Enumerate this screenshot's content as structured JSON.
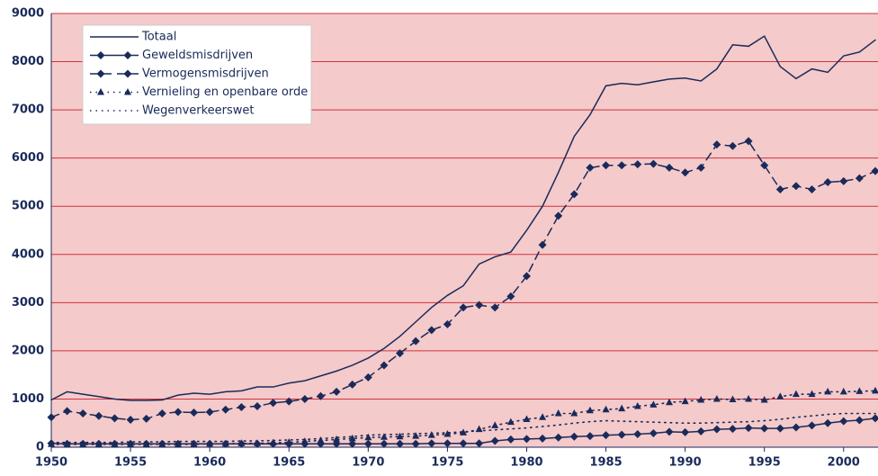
{
  "chart_data": {
    "type": "line",
    "x": [
      1950,
      1951,
      1952,
      1953,
      1954,
      1955,
      1956,
      1957,
      1958,
      1959,
      1960,
      1961,
      1962,
      1963,
      1964,
      1965,
      1966,
      1967,
      1968,
      1969,
      1970,
      1971,
      1972,
      1973,
      1974,
      1975,
      1976,
      1977,
      1978,
      1979,
      1980,
      1981,
      1982,
      1983,
      1984,
      1985,
      1986,
      1987,
      1988,
      1989,
      1990,
      1991,
      1992,
      1993,
      1994,
      1995,
      1996,
      1997,
      1998,
      1999,
      2000,
      2001,
      2002
    ],
    "xlim": [
      1950,
      2002
    ],
    "xticks": [
      1950,
      1955,
      1960,
      1965,
      1970,
      1975,
      1980,
      1985,
      1990,
      1995,
      2000
    ],
    "ylim": [
      0,
      9000
    ],
    "yticks": [
      0,
      1000,
      2000,
      3000,
      4000,
      5000,
      6000,
      7000,
      8000,
      9000
    ],
    "grid": true,
    "legend": "top-left",
    "series": [
      {
        "name": "Totaal",
        "color": "#1a2a5a",
        "dash": "solid",
        "marker": "none",
        "values": [
          980,
          1150,
          1100,
          1050,
          1000,
          970,
          970,
          980,
          1080,
          1120,
          1100,
          1150,
          1170,
          1250,
          1250,
          1330,
          1380,
          1480,
          1580,
          1700,
          1850,
          2050,
          2300,
          2600,
          2900,
          3150,
          3350,
          3800,
          3950,
          4050,
          4500,
          5000,
          5700,
          6450,
          6900,
          7500,
          7550,
          7520,
          7580,
          7640,
          7660,
          7600,
          7850,
          8350,
          8320,
          8530,
          7900,
          7650,
          7850,
          7780,
          8120,
          8200,
          8450
        ]
      },
      {
        "name": "Geweldsmisdrijven",
        "color": "#1a2a5a",
        "dash": "solid",
        "marker": "diamond",
        "values": [
          80,
          70,
          70,
          70,
          70,
          70,
          70,
          70,
          70,
          70,
          70,
          70,
          70,
          70,
          70,
          70,
          70,
          70,
          70,
          70,
          70,
          70,
          70,
          70,
          80,
          80,
          80,
          80,
          130,
          160,
          170,
          180,
          200,
          220,
          230,
          250,
          260,
          270,
          290,
          320,
          310,
          330,
          370,
          380,
          400,
          390,
          390,
          410,
          450,
          500,
          540,
          560,
          600
        ]
      },
      {
        "name": "Vermogensmisdrijven",
        "color": "#1a2a5a",
        "dash": "dashed",
        "marker": "diamond",
        "values": [
          620,
          750,
          700,
          650,
          600,
          570,
          590,
          700,
          730,
          720,
          730,
          780,
          830,
          850,
          920,
          950,
          1000,
          1060,
          1150,
          1300,
          1450,
          1700,
          1950,
          2200,
          2430,
          2550,
          2900,
          2950,
          2900,
          3130,
          3550,
          4200,
          4800,
          5250,
          5800,
          5850,
          5850,
          5870,
          5880,
          5800,
          5700,
          5800,
          6280,
          6250,
          6350,
          5850,
          5350,
          5420,
          5350,
          5500,
          5520,
          5580,
          5730
        ]
      },
      {
        "name": "Vernieling en openbare orde",
        "color": "#1a2a5a",
        "dash": "dotted",
        "marker": "triangle",
        "values": [
          60,
          60,
          60,
          60,
          60,
          60,
          60,
          60,
          60,
          60,
          70,
          70,
          80,
          80,
          90,
          100,
          120,
          140,
          160,
          180,
          200,
          210,
          220,
          230,
          250,
          270,
          300,
          370,
          450,
          520,
          580,
          620,
          700,
          700,
          760,
          780,
          800,
          850,
          880,
          930,
          950,
          980,
          1000,
          990,
          1000,
          980,
          1050,
          1100,
          1100,
          1150,
          1150,
          1160,
          1170
        ]
      },
      {
        "name": "Wegenverkeerswet",
        "color": "#1a2a5a",
        "dash": "dotted",
        "marker": "none",
        "values": [
          100,
          100,
          100,
          100,
          100,
          110,
          110,
          110,
          120,
          120,
          120,
          120,
          130,
          130,
          140,
          150,
          160,
          180,
          200,
          220,
          250,
          260,
          270,
          280,
          290,
          300,
          320,
          340,
          360,
          380,
          400,
          430,
          460,
          500,
          530,
          550,
          540,
          530,
          520,
          510,
          500,
          500,
          510,
          520,
          530,
          550,
          580,
          620,
          650,
          680,
          700,
          700,
          700
        ]
      }
    ]
  }
}
